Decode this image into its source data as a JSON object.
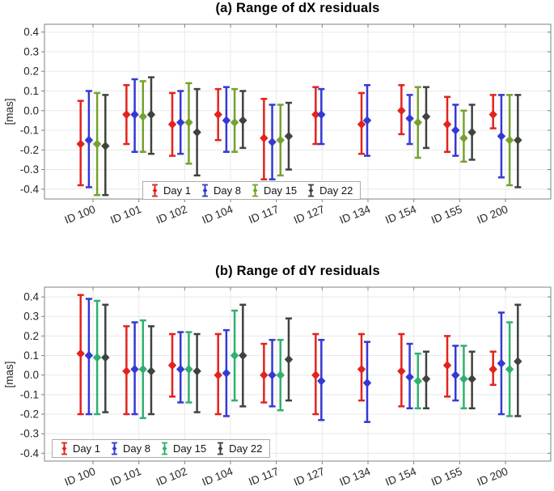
{
  "figure": {
    "background": "#ffffff",
    "axis_color": "#808080",
    "grid_color": "#e8e8e8",
    "tick_text_color": "#262626"
  },
  "chart_data": [
    {
      "type": "errorbar",
      "title": "(a) Range of dX residuals",
      "ylabel": "[mas]",
      "ylim": [
        -0.45,
        0.44
      ],
      "yticks": [
        0.4,
        0.3,
        0.2,
        0.1,
        0.0,
        -0.1,
        -0.2,
        -0.3,
        -0.4
      ],
      "ytick_labels": [
        "0.4",
        "0.3",
        "0.2",
        "0.1",
        "0.0",
        "-0.1",
        "-0.2",
        "-0.3",
        "-0.4"
      ],
      "grid": true,
      "marker": "diamond",
      "legend_position": "inside-bottom-center",
      "legend_labels": [
        "Day 1",
        "Day 8",
        "Day 15",
        "Day 22"
      ],
      "categories": [
        "ID 100",
        "ID 101",
        "ID 102",
        "ID 104",
        "ID 117",
        "ID 127",
        "ID 134",
        "ID 154",
        "ID 155",
        "ID 200"
      ],
      "series": [
        {
          "name": "Day 1",
          "color": "#e2231d",
          "points": [
            [
              -0.17,
              -0.38,
              0.05
            ],
            [
              -0.02,
              -0.17,
              0.13
            ],
            [
              -0.07,
              -0.23,
              0.09
            ],
            [
              -0.02,
              -0.15,
              0.11
            ],
            [
              -0.14,
              -0.35,
              0.06
            ],
            [
              -0.02,
              -0.17,
              0.12
            ],
            [
              -0.07,
              -0.22,
              0.09
            ],
            [
              0.0,
              -0.12,
              0.13
            ],
            [
              -0.07,
              -0.21,
              0.07
            ],
            [
              -0.02,
              -0.09,
              0.08
            ]
          ]
        },
        {
          "name": "Day 8",
          "color": "#3439d4",
          "points": [
            [
              -0.15,
              -0.39,
              0.1
            ],
            [
              -0.02,
              -0.21,
              0.16
            ],
            [
              -0.06,
              -0.22,
              0.1
            ],
            [
              -0.05,
              -0.21,
              0.12
            ],
            [
              -0.16,
              -0.35,
              0.03
            ],
            [
              -0.02,
              -0.17,
              0.11
            ],
            [
              -0.05,
              -0.23,
              0.13
            ],
            [
              -0.04,
              -0.17,
              0.08
            ],
            [
              -0.1,
              -0.23,
              0.03
            ],
            [
              -0.13,
              -0.34,
              0.08
            ]
          ]
        },
        {
          "name": "Day 15",
          "color": "#75a22e",
          "points": [
            [
              -0.17,
              -0.43,
              0.09
            ],
            [
              -0.03,
              -0.21,
              0.15
            ],
            [
              -0.06,
              -0.27,
              0.14
            ],
            [
              -0.06,
              -0.21,
              0.11
            ],
            [
              -0.15,
              -0.33,
              0.03
            ],
            null,
            null,
            [
              -0.06,
              -0.24,
              0.12
            ],
            [
              -0.14,
              -0.26,
              0.0
            ],
            [
              -0.15,
              -0.38,
              0.08
            ]
          ]
        },
        {
          "name": "Day 22",
          "color": "#3e443d",
          "points": [
            [
              -0.18,
              -0.43,
              0.08
            ],
            [
              -0.02,
              -0.22,
              0.17
            ],
            [
              -0.11,
              -0.33,
              0.11
            ],
            [
              -0.05,
              -0.19,
              0.1
            ],
            [
              -0.13,
              -0.3,
              0.04
            ],
            null,
            null,
            [
              -0.03,
              -0.19,
              0.12
            ],
            [
              -0.11,
              -0.25,
              0.03
            ],
            [
              -0.15,
              -0.39,
              0.08
            ]
          ]
        }
      ]
    },
    {
      "type": "errorbar",
      "title": "(b) Range of dY residuals",
      "ylabel": "[mas]",
      "ylim": [
        -0.44,
        0.45
      ],
      "yticks": [
        0.4,
        0.3,
        0.2,
        0.1,
        0.0,
        -0.1,
        -0.2,
        -0.3,
        -0.4
      ],
      "ytick_labels": [
        "0.4",
        "0.3",
        "0.2",
        "0.1",
        "0.0",
        "-0.1",
        "-0.2",
        "-0.3",
        "-0.4"
      ],
      "grid": true,
      "marker": "diamond",
      "legend_position": "inside-bottom-left",
      "legend_labels": [
        "Day 1",
        "Day 8",
        "Day 15",
        "Day 22"
      ],
      "categories": [
        "ID 100",
        "ID 101",
        "ID 102",
        "ID 104",
        "ID 117",
        "ID 127",
        "ID 134",
        "ID 154",
        "ID 155",
        "ID 200"
      ],
      "series": [
        {
          "name": "Day 1",
          "color": "#e2231d",
          "points": [
            [
              0.11,
              -0.2,
              0.41
            ],
            [
              0.02,
              -0.2,
              0.25
            ],
            [
              0.05,
              -0.11,
              0.21
            ],
            [
              0.0,
              -0.2,
              0.21
            ],
            [
              0.0,
              -0.14,
              0.16
            ],
            [
              0.0,
              -0.2,
              0.21
            ],
            [
              0.03,
              -0.13,
              0.21
            ],
            [
              0.02,
              -0.16,
              0.21
            ],
            [
              0.05,
              -0.11,
              0.2
            ],
            [
              0.03,
              -0.05,
              0.12
            ]
          ]
        },
        {
          "name": "Day 8",
          "color": "#3439d4",
          "points": [
            [
              0.1,
              -0.2,
              0.39
            ],
            [
              0.03,
              -0.2,
              0.27
            ],
            [
              0.03,
              -0.14,
              0.22
            ],
            [
              0.01,
              -0.21,
              0.23
            ],
            [
              0.0,
              -0.16,
              0.18
            ],
            [
              -0.03,
              -0.23,
              0.18
            ],
            [
              -0.04,
              -0.24,
              0.17
            ],
            [
              -0.01,
              -0.17,
              0.16
            ],
            [
              0.0,
              -0.13,
              0.15
            ],
            [
              0.06,
              -0.2,
              0.32
            ]
          ]
        },
        {
          "name": "Day 15",
          "color": "#30b06e",
          "points": [
            [
              0.09,
              -0.2,
              0.38
            ],
            [
              0.03,
              -0.22,
              0.28
            ],
            [
              0.03,
              -0.14,
              0.22
            ],
            [
              0.1,
              -0.13,
              0.33
            ],
            [
              0.0,
              -0.18,
              0.18
            ],
            null,
            null,
            [
              -0.03,
              -0.17,
              0.11
            ],
            [
              -0.02,
              -0.17,
              0.15
            ],
            [
              0.03,
              -0.21,
              0.27
            ]
          ]
        },
        {
          "name": "Day 22",
          "color": "#3e443d",
          "points": [
            [
              0.09,
              -0.19,
              0.36
            ],
            [
              0.02,
              -0.2,
              0.25
            ],
            [
              0.02,
              -0.19,
              0.21
            ],
            [
              0.1,
              -0.16,
              0.36
            ],
            [
              0.08,
              -0.13,
              0.29
            ],
            null,
            null,
            [
              -0.02,
              -0.17,
              0.12
            ],
            [
              -0.02,
              -0.17,
              0.12
            ],
            [
              0.07,
              -0.21,
              0.36
            ]
          ]
        }
      ]
    }
  ]
}
